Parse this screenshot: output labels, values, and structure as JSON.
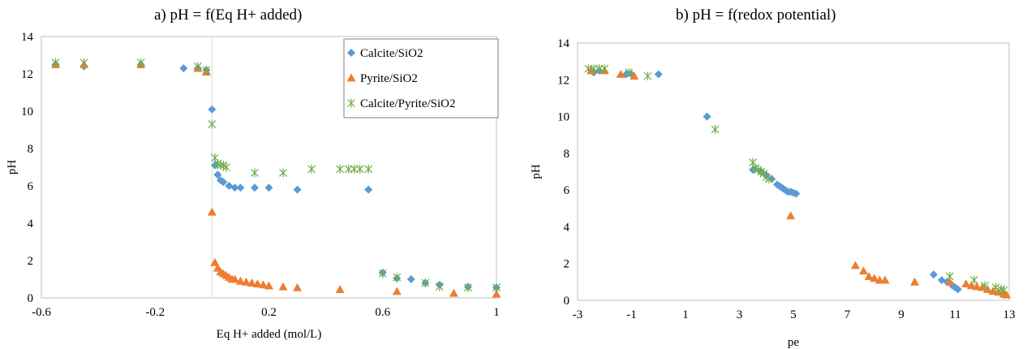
{
  "chart_data": [
    {
      "type": "scatter",
      "title": "a) pH = f(Eq H+ added)",
      "xlabel": "Eq H+ added (mol/L)",
      "ylabel": "pH",
      "xlim": [
        -0.6,
        1.0
      ],
      "ylim": [
        0,
        14
      ],
      "xticks": [
        -0.6,
        -0.2,
        0.2,
        0.6,
        1
      ],
      "xtick_labels": [
        "-0.6",
        "-0.2",
        "0.2",
        "0.6",
        "1"
      ],
      "yticks": [
        0,
        2,
        4,
        6,
        8,
        10,
        12,
        14
      ],
      "ytick_labels": [
        "0",
        "2",
        "4",
        "6",
        "8",
        "10",
        "12",
        "14"
      ],
      "grid": false,
      "vline_x": 0,
      "legend": "top-right",
      "series": [
        {
          "name": "Calcite/SiO2",
          "color": "#5B9BD5",
          "marker": "diamond",
          "points": [
            [
              -0.55,
              12.5
            ],
            [
              -0.45,
              12.4
            ],
            [
              -0.25,
              12.5
            ],
            [
              -0.1,
              12.3
            ],
            [
              -0.05,
              12.3
            ],
            [
              -0.02,
              12.2
            ],
            [
              0.0,
              10.1
            ],
            [
              0.01,
              7.1
            ],
            [
              0.02,
              6.6
            ],
            [
              0.03,
              6.3
            ],
            [
              0.04,
              6.2
            ],
            [
              0.06,
              6.0
            ],
            [
              0.08,
              5.9
            ],
            [
              0.1,
              5.9
            ],
            [
              0.15,
              5.9
            ],
            [
              0.2,
              5.9
            ],
            [
              0.3,
              5.8
            ],
            [
              0.55,
              5.8
            ],
            [
              0.6,
              1.35
            ],
            [
              0.65,
              1.05
            ],
            [
              0.7,
              1.0
            ],
            [
              0.75,
              0.8
            ],
            [
              0.8,
              0.7
            ],
            [
              0.9,
              0.6
            ],
            [
              1.0,
              0.55
            ]
          ]
        },
        {
          "name": "Pyrite/SiO2",
          "color": "#ED7D31",
          "marker": "triangle",
          "points": [
            [
              -0.55,
              12.5
            ],
            [
              -0.45,
              12.5
            ],
            [
              -0.25,
              12.5
            ],
            [
              -0.05,
              12.3
            ],
            [
              -0.02,
              12.1
            ],
            [
              0.0,
              4.6
            ],
            [
              0.01,
              1.9
            ],
            [
              0.02,
              1.6
            ],
            [
              0.03,
              1.4
            ],
            [
              0.04,
              1.3
            ],
            [
              0.05,
              1.2
            ],
            [
              0.06,
              1.1
            ],
            [
              0.07,
              1.0
            ],
            [
              0.08,
              1.0
            ],
            [
              0.1,
              0.9
            ],
            [
              0.12,
              0.85
            ],
            [
              0.14,
              0.8
            ],
            [
              0.16,
              0.75
            ],
            [
              0.18,
              0.7
            ],
            [
              0.2,
              0.65
            ],
            [
              0.25,
              0.6
            ],
            [
              0.3,
              0.55
            ],
            [
              0.45,
              0.45
            ],
            [
              0.65,
              0.35
            ],
            [
              0.85,
              0.25
            ],
            [
              1.0,
              0.2
            ]
          ]
        },
        {
          "name": "Calcite/Pyrite/SiO2",
          "color": "#70AD47",
          "marker": "x",
          "points": [
            [
              -0.55,
              12.6
            ],
            [
              -0.45,
              12.6
            ],
            [
              -0.25,
              12.6
            ],
            [
              -0.05,
              12.4
            ],
            [
              -0.02,
              12.2
            ],
            [
              0.0,
              9.3
            ],
            [
              0.01,
              7.5
            ],
            [
              0.02,
              7.2
            ],
            [
              0.03,
              7.1
            ],
            [
              0.04,
              7.1
            ],
            [
              0.05,
              7.0
            ],
            [
              0.15,
              6.7
            ],
            [
              0.25,
              6.7
            ],
            [
              0.35,
              6.9
            ],
            [
              0.45,
              6.9
            ],
            [
              0.48,
              6.9
            ],
            [
              0.5,
              6.9
            ],
            [
              0.52,
              6.9
            ],
            [
              0.55,
              6.9
            ],
            [
              0.6,
              1.3
            ],
            [
              0.65,
              1.1
            ],
            [
              0.75,
              0.8
            ],
            [
              0.8,
              0.6
            ],
            [
              0.9,
              0.55
            ],
            [
              1.0,
              0.55
            ]
          ]
        }
      ]
    },
    {
      "type": "scatter",
      "title": "b) pH = f(redox potential)",
      "xlabel": "pe",
      "ylabel": "pH",
      "xlim": [
        -3,
        13
      ],
      "ylim": [
        0,
        14
      ],
      "xticks": [
        -3,
        -1,
        1,
        3,
        5,
        7,
        9,
        11,
        13
      ],
      "xtick_labels": [
        "-3",
        "-1",
        "1",
        "3",
        "5",
        "7",
        "9",
        "11",
        "13"
      ],
      "yticks": [
        0,
        2,
        4,
        6,
        8,
        10,
        12,
        14
      ],
      "ytick_labels": [
        "0",
        "2",
        "4",
        "6",
        "8",
        "10",
        "12",
        "14"
      ],
      "grid": false,
      "series": [
        {
          "name": "Calcite/SiO2",
          "color": "#5B9BD5",
          "marker": "diamond",
          "points": [
            [
              -2.4,
              12.4
            ],
            [
              -2.2,
              12.5
            ],
            [
              -1.2,
              12.3
            ],
            [
              -1.0,
              12.3
            ],
            [
              0.0,
              12.3
            ],
            [
              1.8,
              10.0
            ],
            [
              3.5,
              7.1
            ],
            [
              3.8,
              7.0
            ],
            [
              4.0,
              6.8
            ],
            [
              4.2,
              6.6
            ],
            [
              4.4,
              6.3
            ],
            [
              4.5,
              6.2
            ],
            [
              4.6,
              6.1
            ],
            [
              4.7,
              6.0
            ],
            [
              4.8,
              5.9
            ],
            [
              4.9,
              5.9
            ],
            [
              5.0,
              5.85
            ],
            [
              5.1,
              5.8
            ],
            [
              10.2,
              1.4
            ],
            [
              10.5,
              1.1
            ],
            [
              10.7,
              1.0
            ],
            [
              10.9,
              0.8
            ],
            [
              11.0,
              0.7
            ],
            [
              11.1,
              0.6
            ]
          ]
        },
        {
          "name": "Pyrite/SiO2",
          "color": "#ED7D31",
          "marker": "triangle",
          "points": [
            [
              -2.5,
              12.5
            ],
            [
              -2.0,
              12.5
            ],
            [
              -1.4,
              12.3
            ],
            [
              -0.9,
              12.2
            ],
            [
              4.9,
              4.6
            ],
            [
              7.3,
              1.9
            ],
            [
              7.6,
              1.6
            ],
            [
              7.8,
              1.3
            ],
            [
              8.0,
              1.2
            ],
            [
              8.2,
              1.1
            ],
            [
              8.4,
              1.1
            ],
            [
              9.5,
              1.0
            ],
            [
              10.8,
              1.0
            ],
            [
              11.4,
              0.9
            ],
            [
              11.6,
              0.8
            ],
            [
              11.8,
              0.75
            ],
            [
              12.0,
              0.7
            ],
            [
              12.2,
              0.6
            ],
            [
              12.4,
              0.5
            ],
            [
              12.6,
              0.45
            ],
            [
              12.8,
              0.35
            ],
            [
              12.9,
              0.3
            ]
          ]
        },
        {
          "name": "Calcite/Pyrite/SiO2",
          "color": "#70AD47",
          "marker": "x",
          "points": [
            [
              -2.6,
              12.6
            ],
            [
              -2.4,
              12.6
            ],
            [
              -2.2,
              12.6
            ],
            [
              -2.0,
              12.6
            ],
            [
              -1.1,
              12.4
            ],
            [
              -0.4,
              12.2
            ],
            [
              2.1,
              9.3
            ],
            [
              3.5,
              7.5
            ],
            [
              3.6,
              7.2
            ],
            [
              3.7,
              7.1
            ],
            [
              3.8,
              7.0
            ],
            [
              3.9,
              6.9
            ],
            [
              4.0,
              6.7
            ],
            [
              4.1,
              6.6
            ],
            [
              10.8,
              1.3
            ],
            [
              11.7,
              1.1
            ],
            [
              12.1,
              0.8
            ],
            [
              12.5,
              0.7
            ],
            [
              12.7,
              0.6
            ],
            [
              12.8,
              0.55
            ]
          ]
        }
      ]
    }
  ]
}
